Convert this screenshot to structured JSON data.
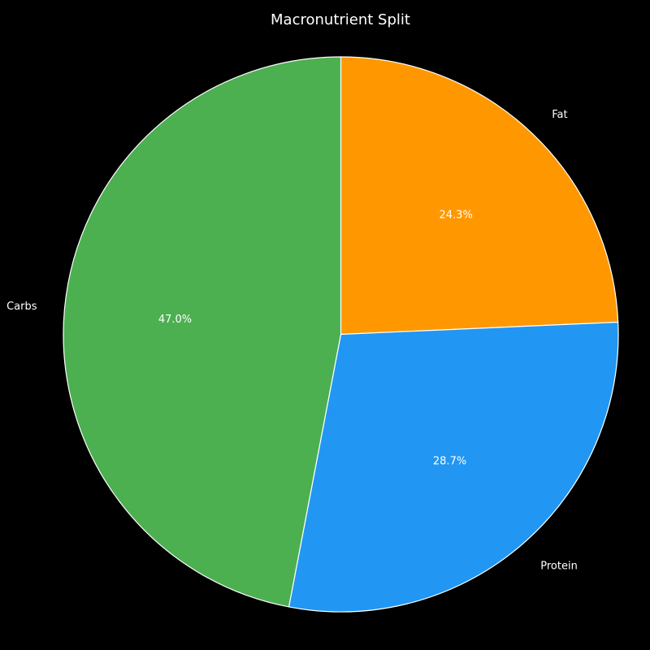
{
  "chart_data": {
    "type": "pie",
    "title": "Macronutrient Split",
    "start_angle_deg": 90,
    "direction": "clockwise",
    "slices": [
      {
        "label": "Fat",
        "value": 24.3,
        "pct_label": "24.3%",
        "color": "#FF9800"
      },
      {
        "label": "Protein",
        "value": 28.7,
        "pct_label": "28.7%",
        "color": "#2196F3"
      },
      {
        "label": "Carbs",
        "value": 47.0,
        "pct_label": "47.0%",
        "color": "#4CAF50"
      }
    ]
  }
}
